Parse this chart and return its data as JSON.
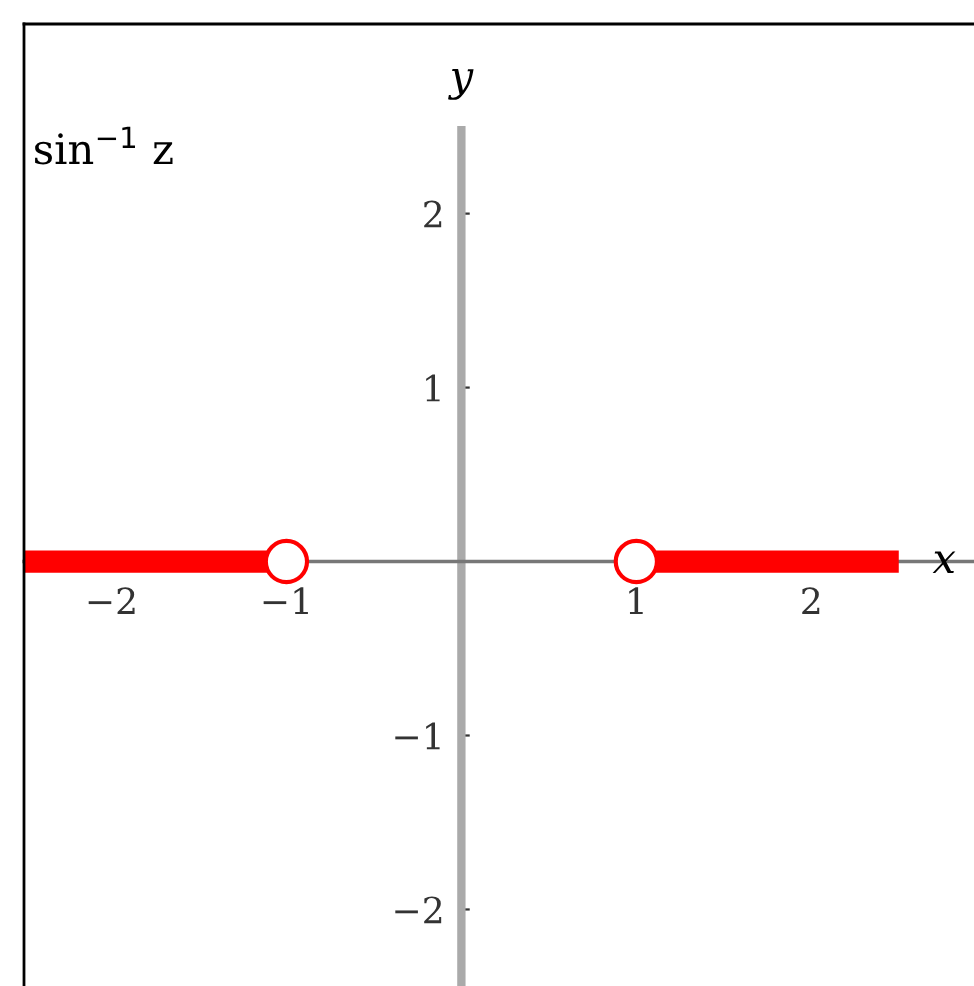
{
  "chart_data": {
    "type": "line",
    "title": "sin$^{−1}$ z",
    "xlabel": "x",
    "ylabel": "y",
    "series": [
      {
        "color": "#ff0000",
        "x": [
          -2.5,
          -1
        ],
        "values": [
          0,
          0
        ]
      },
      {
        "color": "#ff0000",
        "x": [
          1,
          2.5
        ],
        "values": [
          0,
          0
        ]
      },
      {
        "type": "scatter",
        "color": "#ff0000",
        "marker": "circle",
        "x": [
          -1,
          1
        ],
        "values": [
          0,
          0
        ]
      }
    ],
    "xlim": [
      -2.5,
      2.93
    ],
    "ylim": [
      -2.44,
      3.09
    ],
    "xticks": [
      {
        "value": -2,
        "label": "−2"
      },
      {
        "value": -1,
        "label": "−1"
      },
      1,
      2
    ],
    "yticks": [
      {
        "value": -2,
        "label": "−2"
      },
      {
        "value": -1,
        "label": "−1"
      },
      1,
      2
    ],
    "grid": false,
    "legend": false
  }
}
